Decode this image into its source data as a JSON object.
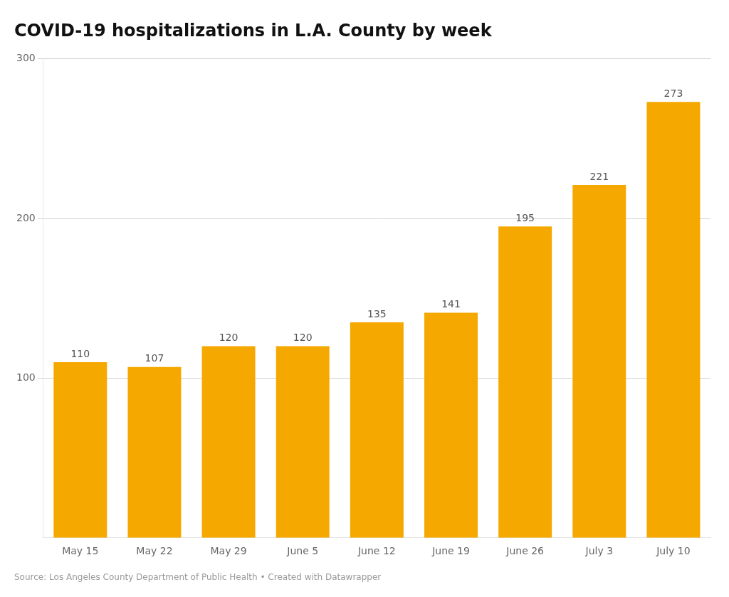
{
  "chart_data": {
    "type": "bar",
    "title": "COVID-19 hospitalizations in L.A. County by week",
    "categories": [
      "May 15",
      "May 22",
      "May 29",
      "June 5",
      "June 12",
      "June 19",
      "June 26",
      "July 3",
      "July 10"
    ],
    "values": [
      110,
      107,
      120,
      120,
      135,
      141,
      195,
      221,
      273
    ],
    "color": "#F5A800",
    "ylim": [
      0,
      300
    ],
    "yticks": [
      100,
      200,
      300
    ],
    "grid": true,
    "data_labels": true,
    "source": "Source: Los Angeles County Department of Public Health • Created with Datawrapper"
  }
}
